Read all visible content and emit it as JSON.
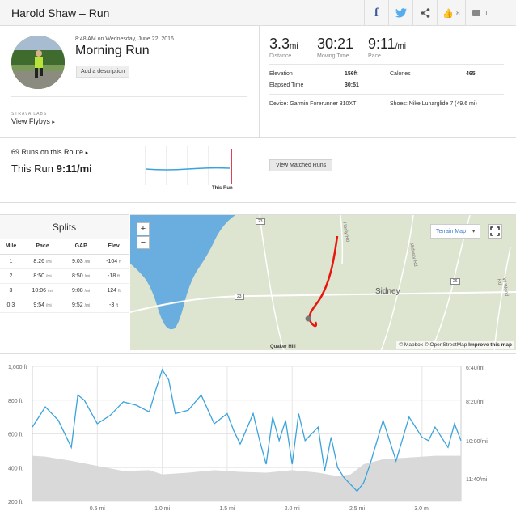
{
  "header": {
    "title": "Harold Shaw – Run",
    "kudos_count": "8",
    "comments_count": "0"
  },
  "activity": {
    "datetime": "8:48 AM on Wednesday, June 22, 2016",
    "name": "Morning Run",
    "add_description": "Add a description",
    "labs_tag": "STRAVA LABS",
    "flybys": "View Flybys"
  },
  "stats": {
    "distance": {
      "value": "3.3",
      "unit": "mi",
      "label": "Distance"
    },
    "moving_time": {
      "value": "30:21",
      "label": "Moving Time"
    },
    "pace": {
      "value": "9:11",
      "unit": "/mi",
      "label": "Pace"
    },
    "elevation_label": "Elevation",
    "elevation_value": "156ft",
    "calories_label": "Calories",
    "calories_value": "465",
    "elapsed_label": "Elapsed Time",
    "elapsed_value": "30:51",
    "device": "Device: Garmin Forerunner 310XT",
    "shoes": "Shoes: Nike Lunarglide 7 (49.6 mi)"
  },
  "route": {
    "runs_on_route": "69 Runs on this Route",
    "this_run_label": "This Run",
    "this_run_pace": "9:11/mi",
    "sparkline_label": "This Run",
    "view_matched": "View Matched Runs"
  },
  "splits": {
    "title": "Splits",
    "headers": [
      "Mile",
      "Pace",
      "GAP",
      "Elev"
    ],
    "rows": [
      {
        "mile": "1",
        "pace": "8:26",
        "pace_unit": "/mi",
        "gap": "9:03",
        "gap_unit": "/mi",
        "elev": "-104",
        "elev_unit": "ft"
      },
      {
        "mile": "2",
        "pace": "8:50",
        "pace_unit": "/mi",
        "gap": "8:50",
        "gap_unit": "/mi",
        "elev": "-18",
        "elev_unit": "ft"
      },
      {
        "mile": "3",
        "pace": "10:06",
        "pace_unit": "/mi",
        "gap": "9:08",
        "gap_unit": "/mi",
        "elev": "124",
        "elev_unit": "ft"
      },
      {
        "mile": "0.3",
        "pace": "9:54",
        "pace_unit": "/mi",
        "gap": "9:52",
        "gap_unit": "/mi",
        "elev": "-3",
        "elev_unit": "ft"
      }
    ]
  },
  "map": {
    "zoom_in": "+",
    "zoom_out": "−",
    "terrain_select": "Terrain Map",
    "town_label": "Sidney",
    "peak_label": "Quaker Hill",
    "road_1": "Hanly Rd",
    "road_2": "Midway Rd",
    "road_3": "W Wood Rd",
    "route_23a": "23",
    "route_23b": "23",
    "route_26": "26",
    "attribution_mapbox": "© Mapbox",
    "attribution_osm": "© OpenStreetMap",
    "attribution_improve": "Improve this map",
    "water_color": "#6aaee0",
    "route_color": "#e8160c"
  },
  "chart_data": {
    "type": "area",
    "x_ticks": [
      "0.5 mi",
      "1.0 mi",
      "1.5 mi",
      "2.0 mi",
      "2.5 mi",
      "3.0 mi"
    ],
    "y_left_ticks": [
      "1,000 ft",
      "800 ft",
      "600 ft",
      "400 ft",
      "200 ft"
    ],
    "y_right_ticks": [
      "6:40/mi",
      "8:20/mi",
      "10:00/mi",
      "11:40/mi"
    ],
    "ylim_left": [
      200,
      1000
    ],
    "xlim": [
      0,
      3.3
    ],
    "series": [
      {
        "kind": "elevation",
        "x": [
          0,
          0.1,
          0.3,
          0.5,
          0.7,
          0.9,
          1.0,
          1.2,
          1.4,
          1.6,
          1.8,
          2.0,
          2.2,
          2.35,
          2.45,
          2.55,
          2.7,
          2.9,
          3.1,
          3.3
        ],
        "y": [
          470,
          465,
          440,
          410,
          380,
          385,
          360,
          370,
          385,
          375,
          370,
          385,
          370,
          350,
          360,
          420,
          450,
          460,
          470,
          470
        ]
      },
      {
        "kind": "pace",
        "x": [
          0,
          0.05,
          0.1,
          0.2,
          0.3,
          0.35,
          0.4,
          0.5,
          0.6,
          0.7,
          0.8,
          0.9,
          0.95,
          1.0,
          1.05,
          1.1,
          1.2,
          1.3,
          1.4,
          1.5,
          1.55,
          1.6,
          1.7,
          1.75,
          1.8,
          1.85,
          1.9,
          1.95,
          2.0,
          2.05,
          2.1,
          2.2,
          2.25,
          2.3,
          2.35,
          2.4,
          2.45,
          2.5,
          2.55,
          2.6,
          2.7,
          2.75,
          2.8,
          2.9,
          3.0,
          3.05,
          3.1,
          3.2,
          3.25,
          3.3
        ],
        "y": [
          640,
          700,
          760,
          680,
          520,
          830,
          800,
          660,
          710,
          790,
          770,
          730,
          860,
          980,
          920,
          720,
          740,
          830,
          660,
          720,
          620,
          540,
          720,
          560,
          420,
          700,
          560,
          680,
          420,
          720,
          560,
          640,
          380,
          580,
          400,
          340,
          300,
          260,
          310,
          420,
          680,
          560,
          440,
          700,
          580,
          560,
          640,
          520,
          660,
          560
        ]
      }
    ]
  }
}
